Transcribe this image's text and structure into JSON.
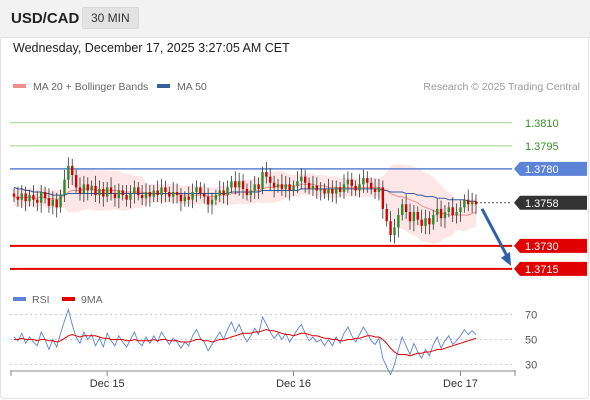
{
  "header": {
    "symbol": "USD/CAD",
    "interval": "30 MIN"
  },
  "timestamp": "Wednesday, December 17, 2025 3:27:05 AM CET",
  "credit": "Research © 2025 Trading Central",
  "colors": {
    "candle_up": "#2a8c2a",
    "candle_down": "#d60000",
    "ma20": "#f28e8e",
    "bollinger_fill": "#fde2e2",
    "ma50": "#365fa0",
    "resistance": "#9fd68a",
    "pivot": "#5b83d8",
    "support": "#e00000",
    "current": "#333333",
    "arrow": "#2f5fa6",
    "rsi": "#5b83d8",
    "rsi_ma": "#e00000"
  },
  "chart_data": [
    {
      "type": "candlestick",
      "title": "USD/CAD",
      "legend": [
        {
          "name": "MA 20 + Bollinger Bands",
          "color": "#f28e8e"
        },
        {
          "name": "MA 50",
          "color": "#365fa0"
        }
      ],
      "x_tick_labels": [
        "Dec 15",
        "Dec 16",
        "Dec 17"
      ],
      "ylim": [
        1.37,
        1.383
      ],
      "levels": [
        {
          "label": "1.3810",
          "value": 1.381,
          "kind": "resistance"
        },
        {
          "label": "1.3795",
          "value": 1.3795,
          "kind": "resistance"
        },
        {
          "label": "1.3780",
          "value": 1.378,
          "kind": "pivot"
        },
        {
          "label": "1.3758",
          "value": 1.3758,
          "kind": "current"
        },
        {
          "label": "1.3730",
          "value": 1.373,
          "kind": "support"
        },
        {
          "label": "1.3715",
          "value": 1.3715,
          "kind": "support"
        }
      ],
      "forecast_arrow": {
        "from": 1.3758,
        "to": 1.3715
      },
      "candles_start_index": 0,
      "candles_per_day": 48,
      "closes": [
        1.3762,
        1.376,
        1.3764,
        1.3759,
        1.3763,
        1.376,
        1.3758,
        1.3765,
        1.3761,
        1.3756,
        1.376,
        1.3755,
        1.3763,
        1.3773,
        1.3782,
        1.3776,
        1.3768,
        1.3764,
        1.377,
        1.3766,
        1.3769,
        1.3763,
        1.3767,
        1.3762,
        1.3768,
        1.3764,
        1.3761,
        1.3766,
        1.3763,
        1.376,
        1.3764,
        1.3768,
        1.3763,
        1.3761,
        1.3765,
        1.3762,
        1.3766,
        1.3763,
        1.3768,
        1.3765,
        1.3762,
        1.3765,
        1.3763,
        1.3759,
        1.3762,
        1.376,
        1.3765,
        1.3768,
        1.3764,
        1.3762,
        1.3757,
        1.376,
        1.3763,
        1.3766,
        1.3763,
        1.3768,
        1.3772,
        1.3768,
        1.3772,
        1.3767,
        1.3763,
        1.3766,
        1.377,
        1.3767,
        1.3778,
        1.3775,
        1.3771,
        1.3768,
        1.377,
        1.3767,
        1.377,
        1.3766,
        1.3769,
        1.3772,
        1.3775,
        1.3771,
        1.3767,
        1.3769,
        1.3766,
        1.3767,
        1.3764,
        1.3767,
        1.3764,
        1.3768,
        1.3765,
        1.377,
        1.3773,
        1.3769,
        1.3766,
        1.377,
        1.3774,
        1.3771,
        1.3767,
        1.3765,
        1.3768,
        1.3754,
        1.3746,
        1.3737,
        1.3742,
        1.375,
        1.3757,
        1.3752,
        1.3746,
        1.3752,
        1.3747,
        1.3743,
        1.3748,
        1.3744,
        1.375,
        1.3754,
        1.3748,
        1.3752,
        1.3755,
        1.375,
        1.3752,
        1.3755,
        1.376,
        1.3757,
        1.3759,
        1.3757
      ],
      "series": [
        {
          "name": "MA 20 + Bollinger Bands",
          "values": [
            1.3762,
            1.3761,
            1.3762,
            1.3761,
            1.3762,
            1.3761,
            1.3761,
            1.3762,
            1.3761,
            1.376,
            1.3761,
            1.376,
            1.3761,
            1.3763,
            1.3765,
            1.3766,
            1.3766,
            1.3766,
            1.3767,
            1.3767,
            1.3767,
            1.3766,
            1.3766,
            1.3766,
            1.3766,
            1.3766,
            1.3766,
            1.3766,
            1.3765,
            1.3765,
            1.3765,
            1.3765,
            1.3765,
            1.3765,
            1.3764,
            1.3764,
            1.3764,
            1.3764,
            1.3764,
            1.3764,
            1.3764,
            1.3764,
            1.3764,
            1.3763,
            1.3763,
            1.3763,
            1.3763,
            1.3763,
            1.3763,
            1.3763,
            1.3762,
            1.3762,
            1.3762,
            1.3763,
            1.3763,
            1.3763,
            1.3764,
            1.3764,
            1.3765,
            1.3765,
            1.3765,
            1.3765,
            1.3766,
            1.3766,
            1.3767,
            1.3768,
            1.3768,
            1.3768,
            1.3769,
            1.3769,
            1.3769,
            1.3769,
            1.3769,
            1.3769,
            1.377,
            1.377,
            1.377,
            1.377,
            1.3769,
            1.3769,
            1.3769,
            1.3768,
            1.3768,
            1.3768,
            1.3768,
            1.3768,
            1.3768,
            1.3768,
            1.3768,
            1.3768,
            1.3768,
            1.3768,
            1.3768,
            1.3768,
            1.3768,
            1.3767,
            1.3766,
            1.3764,
            1.3763,
            1.3762,
            1.3762,
            1.3761,
            1.376,
            1.3759,
            1.3758,
            1.3756,
            1.3755,
            1.3754,
            1.3753,
            1.3752,
            1.3751,
            1.3751,
            1.375,
            1.375,
            1.375,
            1.375,
            1.375,
            1.375,
            1.3751,
            1.3752
          ]
        },
        {
          "name": "MA 50",
          "values": [
            1.3768,
            1.3767,
            1.3767,
            1.3766,
            1.3766,
            1.3765,
            1.3765,
            1.3765,
            1.3764,
            1.3764,
            1.3763,
            1.3763,
            1.3763,
            1.3763,
            1.3764,
            1.3764,
            1.3764,
            1.3764,
            1.3764,
            1.3764,
            1.3764,
            1.3764,
            1.3764,
            1.3764,
            1.3764,
            1.3764,
            1.3764,
            1.3764,
            1.3764,
            1.3764,
            1.3764,
            1.3764,
            1.3764,
            1.3764,
            1.3764,
            1.3764,
            1.3764,
            1.3764,
            1.3764,
            1.3764,
            1.3764,
            1.3764,
            1.3764,
            1.3764,
            1.3764,
            1.3764,
            1.3764,
            1.3764,
            1.3764,
            1.3764,
            1.3764,
            1.3764,
            1.3764,
            1.3764,
            1.3764,
            1.3764,
            1.3765,
            1.3765,
            1.3765,
            1.3765,
            1.3765,
            1.3765,
            1.3765,
            1.3765,
            1.3766,
            1.3766,
            1.3766,
            1.3766,
            1.3766,
            1.3766,
            1.3766,
            1.3766,
            1.3766,
            1.3766,
            1.3767,
            1.3767,
            1.3767,
            1.3767,
            1.3767,
            1.3767,
            1.3767,
            1.3767,
            1.3767,
            1.3767,
            1.3767,
            1.3767,
            1.3767,
            1.3767,
            1.3767,
            1.3767,
            1.3767,
            1.3767,
            1.3767,
            1.3767,
            1.3767,
            1.3766,
            1.3766,
            1.3765,
            1.3765,
            1.3765,
            1.3765,
            1.3764,
            1.3764,
            1.3764,
            1.3763,
            1.3763,
            1.3762,
            1.3762,
            1.3762,
            1.3761,
            1.3761,
            1.3761,
            1.376,
            1.376,
            1.376,
            1.376,
            1.376,
            1.3759,
            1.3759,
            1.3759
          ]
        }
      ]
    },
    {
      "type": "line",
      "title": "RSI",
      "legend": [
        {
          "name": "RSI",
          "color": "#5b83d8"
        },
        {
          "name": "9MA",
          "color": "#e00000"
        }
      ],
      "y_tick_labels": [
        "70",
        "50",
        "30"
      ],
      "ylim": [
        20,
        80
      ],
      "series": [
        {
          "name": "RSI",
          "values": [
            52,
            49,
            55,
            47,
            52,
            48,
            45,
            56,
            50,
            42,
            50,
            44,
            55,
            65,
            74,
            62,
            52,
            47,
            56,
            50,
            54,
            45,
            51,
            44,
            55,
            49,
            45,
            53,
            48,
            44,
            50,
            56,
            48,
            45,
            52,
            47,
            53,
            48,
            56,
            51,
            46,
            51,
            48,
            43,
            48,
            45,
            53,
            58,
            51,
            48,
            41,
            46,
            51,
            56,
            50,
            58,
            64,
            56,
            62,
            54,
            48,
            53,
            59,
            54,
            68,
            62,
            56,
            51,
            55,
            50,
            55,
            48,
            53,
            58,
            62,
            55,
            49,
            52,
            48,
            50,
            45,
            50,
            45,
            52,
            47,
            55,
            60,
            53,
            48,
            54,
            60,
            55,
            49,
            46,
            51,
            35,
            28,
            22,
            30,
            42,
            52,
            45,
            38,
            47,
            40,
            35,
            42,
            37,
            46,
            52,
            43,
            49,
            53,
            46,
            49,
            53,
            58,
            54,
            57,
            54
          ]
        },
        {
          "name": "9MA",
          "values": [
            50,
            50,
            51,
            50,
            50,
            50,
            49,
            50,
            50,
            49,
            49,
            48,
            49,
            51,
            53,
            54,
            53,
            52,
            53,
            53,
            53,
            53,
            52,
            51,
            51,
            50,
            50,
            50,
            50,
            49,
            49,
            50,
            49,
            49,
            49,
            49,
            50,
            49,
            50,
            50,
            49,
            49,
            49,
            48,
            48,
            48,
            49,
            50,
            50,
            49,
            49,
            48,
            49,
            50,
            50,
            51,
            52,
            53,
            54,
            55,
            55,
            55,
            56,
            56,
            57,
            58,
            57,
            57,
            56,
            55,
            54,
            54,
            53,
            54,
            55,
            55,
            54,
            53,
            53,
            52,
            51,
            51,
            50,
            50,
            49,
            49,
            50,
            50,
            51,
            51,
            52,
            53,
            53,
            52,
            52,
            50,
            47,
            43,
            40,
            38,
            38,
            38,
            37,
            38,
            39,
            39,
            40,
            40,
            41,
            42,
            42,
            43,
            44,
            45,
            46,
            47,
            48,
            49,
            50,
            51
          ]
        }
      ]
    }
  ]
}
